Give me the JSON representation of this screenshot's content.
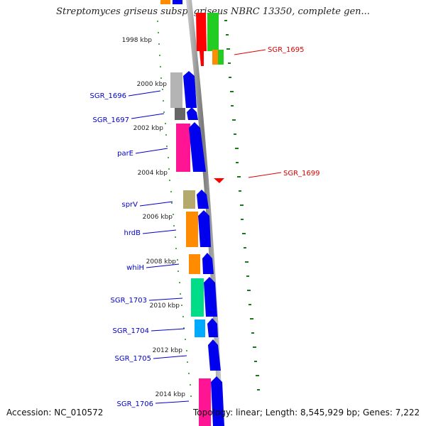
{
  "title": "Streptomyces griseus subsp. griseus NBRC 13350, complete gen...",
  "accession": "Accession: NC_010572",
  "topology": "Topology: linear; Length: 8,545,929 bp; Genes: 7,222",
  "colors": {
    "axis": "#8a8a8a",
    "label_left": "#0000cc",
    "label_right": "#dd0000",
    "tick_dots": "#1e8c1e",
    "tick_dashes": "#1a7a1a"
  },
  "kbp_ticks": [
    "1998 kbp",
    "2000 kbp",
    "2002 kbp",
    "2004 kbp",
    "2006 kbp",
    "2008 kbp",
    "2010 kbp",
    "2012 kbp",
    "2014 kbp"
  ],
  "genes": [
    {
      "name": "SGR_1695",
      "strand": "-",
      "colors": [
        "#ff0000",
        "#22cc22",
        "#ff8800"
      ]
    },
    {
      "name": "SGR_1696",
      "strand": "+",
      "colors": [
        "#b4b4b4",
        "#0000ee"
      ]
    },
    {
      "name": "SGR_1697",
      "strand": "+",
      "colors": [
        "#666666",
        "#0000ee"
      ]
    },
    {
      "name": "parE",
      "strand": "+",
      "colors": [
        "#ff1493",
        "#0000ee"
      ]
    },
    {
      "name": "SGR_1699",
      "strand": "-",
      "colors": [
        "#ff0000"
      ]
    },
    {
      "name": "sprV",
      "strand": "+",
      "colors": [
        "#b5aa6e",
        "#0000ee"
      ]
    },
    {
      "name": "hrdB",
      "strand": "+",
      "colors": [
        "#ff8c00",
        "#0000ee"
      ]
    },
    {
      "name": "whiH",
      "strand": "+",
      "colors": [
        "#ff8c00",
        "#0000ee"
      ]
    },
    {
      "name": "SGR_1703",
      "strand": "+",
      "colors": [
        "#00dd88",
        "#0000ee"
      ]
    },
    {
      "name": "SGR_1704",
      "strand": "+",
      "colors": [
        "#00aaff",
        "#0000ee"
      ]
    },
    {
      "name": "SGR_1705",
      "strand": "+",
      "colors": [
        "#0000ee"
      ]
    },
    {
      "name": "SGR_1706",
      "strand": "+",
      "colors": [
        "#ff1493",
        "#0000ee"
      ]
    }
  ]
}
